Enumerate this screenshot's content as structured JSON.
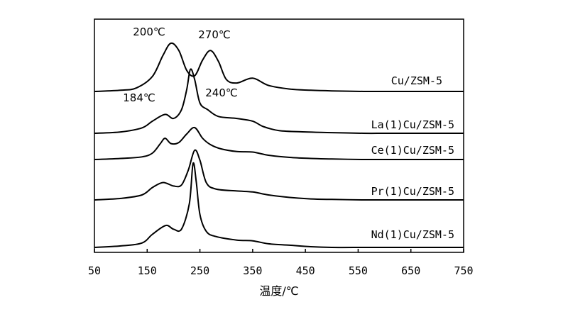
{
  "chart_data": {
    "type": "line",
    "xlabel": "温度/℃",
    "ylabel": "",
    "xlim": [
      50,
      750
    ],
    "x_ticks": [
      50,
      150,
      250,
      350,
      450,
      550,
      650,
      750
    ],
    "y_ticks_shown": false,
    "grid": false,
    "series": [
      {
        "name": "Cu/ZSM-5",
        "x": [
          50,
          100,
          130,
          160,
          180,
          195,
          210,
          225,
          240,
          255,
          270,
          285,
          300,
          320,
          350,
          380,
          420,
          460,
          500,
          560,
          600,
          650,
          700,
          750
        ],
        "y": [
          0.0,
          0.02,
          0.06,
          0.25,
          0.6,
          0.8,
          0.68,
          0.35,
          0.26,
          0.52,
          0.68,
          0.5,
          0.2,
          0.14,
          0.22,
          0.1,
          0.04,
          0.02,
          0.01,
          0.0,
          0.0,
          0.0,
          0.0,
          0.0
        ]
      },
      {
        "name": "La(1)Cu/ZSM-5",
        "x": [
          50,
          100,
          140,
          160,
          184,
          200,
          215,
          225,
          232,
          240,
          250,
          265,
          285,
          320,
          350,
          370,
          400,
          450,
          500,
          560,
          600,
          650,
          700,
          750
        ],
        "y": [
          0.0,
          0.02,
          0.08,
          0.18,
          0.28,
          0.22,
          0.35,
          0.65,
          0.95,
          0.8,
          0.45,
          0.35,
          0.25,
          0.22,
          0.18,
          0.1,
          0.04,
          0.02,
          0.01,
          0.0,
          0.0,
          0.0,
          0.0,
          0.0
        ]
      },
      {
        "name": "Ce(1)Cu/ZSM-5",
        "x": [
          50,
          100,
          140,
          160,
          175,
          184,
          195,
          210,
          225,
          240,
          255,
          270,
          290,
          320,
          350,
          380,
          420,
          460,
          500,
          560,
          600,
          650,
          700,
          750
        ],
        "y": [
          0.0,
          0.02,
          0.05,
          0.12,
          0.3,
          0.4,
          0.3,
          0.32,
          0.48,
          0.6,
          0.4,
          0.28,
          0.2,
          0.15,
          0.14,
          0.08,
          0.04,
          0.02,
          0.01,
          0.0,
          0.0,
          0.0,
          0.0,
          0.0
        ]
      },
      {
        "name": "Pr(1)Cu/ZSM-5",
        "x": [
          50,
          100,
          140,
          160,
          180,
          200,
          215,
          228,
          240,
          250,
          262,
          280,
          320,
          350,
          380,
          420,
          460,
          500,
          560,
          600,
          650,
          700,
          750
        ],
        "y": [
          0.0,
          0.03,
          0.1,
          0.25,
          0.35,
          0.28,
          0.3,
          0.6,
          1.0,
          0.8,
          0.35,
          0.22,
          0.18,
          0.16,
          0.1,
          0.05,
          0.02,
          0.01,
          0.0,
          0.0,
          0.0,
          0.0,
          0.0
        ]
      },
      {
        "name": "Nd(1)Cu/ZSM-5",
        "x": [
          50,
          100,
          140,
          160,
          185,
          200,
          215,
          230,
          237,
          243,
          250,
          262,
          280,
          320,
          350,
          380,
          420,
          460,
          500,
          560,
          600,
          650,
          700,
          750
        ],
        "y": [
          0.0,
          0.02,
          0.06,
          0.18,
          0.3,
          0.25,
          0.25,
          0.6,
          1.15,
          0.9,
          0.45,
          0.22,
          0.15,
          0.1,
          0.09,
          0.05,
          0.03,
          0.01,
          0.0,
          0.0,
          0.0,
          0.0,
          0.0,
          0.0
        ]
      }
    ],
    "annotations": [
      "200℃",
      "270℃",
      "184℃",
      "240℃"
    ]
  }
}
